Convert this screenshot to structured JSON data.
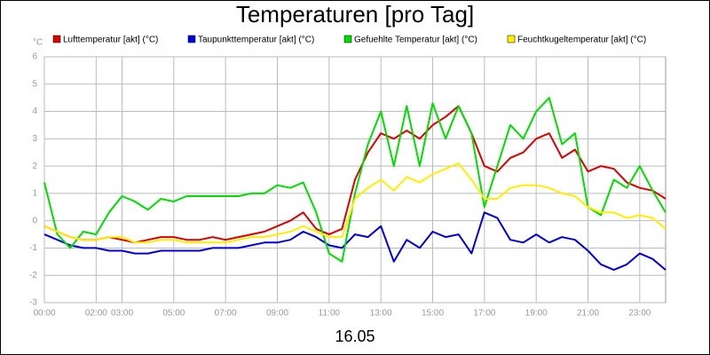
{
  "chart_data": {
    "type": "line",
    "title": "Temperaturen [pro Tag]",
    "y_unit": "°C",
    "xlabel": "16.05",
    "x": [
      0,
      0.5,
      1,
      1.5,
      2,
      2.5,
      3,
      3.5,
      4,
      4.5,
      5,
      5.5,
      6,
      6.5,
      7,
      7.5,
      8,
      8.5,
      9,
      9.5,
      10,
      10.5,
      11,
      11.5,
      12,
      12.5,
      13,
      13.5,
      14,
      14.5,
      15,
      15.5,
      16,
      16.5,
      17,
      17.5,
      18,
      18.5,
      19,
      19.5,
      20,
      20.5,
      21,
      21.5,
      22,
      22.5,
      23,
      23.5,
      24
    ],
    "xlim": [
      0,
      24
    ],
    "xticks": [
      {
        "value": 0,
        "label": "00:00"
      },
      {
        "value": 2,
        "label": "02:00"
      },
      {
        "value": 3,
        "label": "03:00"
      },
      {
        "value": 5,
        "label": "05:00"
      },
      {
        "value": 7,
        "label": "07:00"
      },
      {
        "value": 9,
        "label": "09:00"
      },
      {
        "value": 11,
        "label": "11:00"
      },
      {
        "value": 13,
        "label": "13:00"
      },
      {
        "value": 15,
        "label": "15:00"
      },
      {
        "value": 17,
        "label": "17:00"
      },
      {
        "value": 19,
        "label": "19:00"
      },
      {
        "value": 21,
        "label": "21:00"
      },
      {
        "value": 23,
        "label": "23:00"
      }
    ],
    "ylim": [
      -3,
      6
    ],
    "yticks": [
      -3,
      -2,
      -1,
      0,
      1,
      2,
      3,
      4,
      5,
      6
    ],
    "grid": true,
    "series": [
      {
        "name": "Lufttemperatur [akt] (°C)",
        "color": "#dd0000",
        "values": [
          -0.2,
          -0.4,
          -0.6,
          -0.7,
          -0.7,
          -0.6,
          -0.7,
          -0.8,
          -0.7,
          -0.6,
          -0.6,
          -0.7,
          -0.7,
          -0.6,
          -0.7,
          -0.6,
          -0.5,
          -0.4,
          -0.2,
          0,
          0.3,
          -0.3,
          -0.5,
          -0.3,
          1.5,
          2.5,
          3.2,
          3.0,
          3.3,
          3.0,
          3.5,
          3.8,
          4.2,
          3.2,
          2.0,
          1.8,
          2.3,
          2.5,
          3.0,
          3.2,
          2.3,
          2.6,
          1.8,
          2.0,
          1.9,
          1.4,
          1.2,
          1.1,
          0.8
        ]
      },
      {
        "name": "Taupunkttemperatur [akt] (°C)",
        "color": "#0000dd",
        "values": [
          -0.5,
          -0.7,
          -0.9,
          -1.0,
          -1.0,
          -1.1,
          -1.1,
          -1.2,
          -1.2,
          -1.1,
          -1.1,
          -1.1,
          -1.1,
          -1.0,
          -1.0,
          -1.0,
          -0.9,
          -0.8,
          -0.8,
          -0.7,
          -0.4,
          -0.6,
          -0.9,
          -1.0,
          -0.5,
          -0.6,
          -0.2,
          -1.5,
          -0.7,
          -1.0,
          -0.4,
          -0.6,
          -0.5,
          -1.2,
          0.3,
          0.1,
          -0.7,
          -0.8,
          -0.5,
          -0.8,
          -0.6,
          -0.7,
          -1.1,
          -1.6,
          -1.8,
          -1.6,
          -1.2,
          -1.4,
          -1.8
        ]
      },
      {
        "name": "Gefuehlte Temperatur [akt] (°C)",
        "color": "#00dd00",
        "values": [
          1.4,
          -0.5,
          -1.0,
          -0.4,
          -0.5,
          0.3,
          0.9,
          0.7,
          0.4,
          0.8,
          0.7,
          0.9,
          0.9,
          0.9,
          0.9,
          0.9,
          1.0,
          1.0,
          1.3,
          1.2,
          1.4,
          0.3,
          -1.2,
          -1.5,
          1.0,
          2.8,
          4.0,
          2.0,
          4.2,
          2.0,
          4.3,
          3.0,
          4.2,
          3.2,
          0.5,
          2.0,
          3.5,
          3.0,
          4.0,
          4.5,
          2.8,
          3.2,
          0.5,
          0.2,
          1.5,
          1.2,
          2.0,
          1.1,
          0.3
        ]
      },
      {
        "name": "Feuchtkugeltemperatur [akt] (°C)",
        "color": "#ffee00",
        "values": [
          -0.2,
          -0.4,
          -0.6,
          -0.7,
          -0.7,
          -0.6,
          -0.6,
          -0.8,
          -0.8,
          -0.7,
          -0.7,
          -0.8,
          -0.8,
          -0.8,
          -0.8,
          -0.7,
          -0.6,
          -0.6,
          -0.5,
          -0.4,
          -0.2,
          -0.4,
          -0.6,
          -0.6,
          0.8,
          1.2,
          1.5,
          1.1,
          1.6,
          1.4,
          1.7,
          1.9,
          2.1,
          1.5,
          0.8,
          0.8,
          1.2,
          1.3,
          1.3,
          1.2,
          1.0,
          0.9,
          0.5,
          0.3,
          0.3,
          0.1,
          0.2,
          0.1,
          -0.3
        ]
      }
    ]
  }
}
